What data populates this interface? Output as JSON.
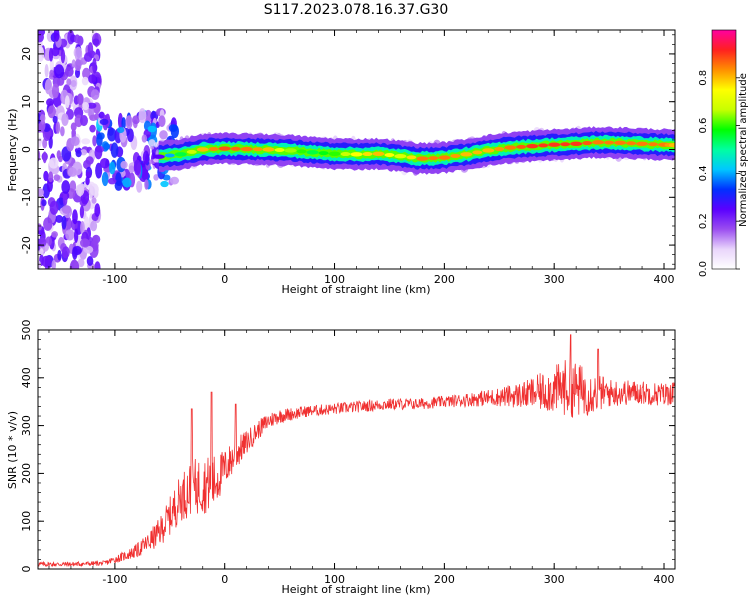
{
  "figure": {
    "title": "S117.2023.078.16.37.G30"
  },
  "chart_data": [
    {
      "type": "heatmap",
      "xlabel": "Height of straight line (km)",
      "ylabel": "Frequency (Hz)",
      "xlim": [
        -170,
        410
      ],
      "ylim": [
        -25,
        25
      ],
      "xticks": [
        -100,
        0,
        100,
        200,
        300,
        400
      ],
      "yticks": [
        -20,
        -10,
        0,
        10,
        20
      ],
      "colorbar": {
        "label": "Normalized spectral amplitude",
        "range": [
          0,
          1
        ],
        "ticks": [
          0.0,
          0.2,
          0.4,
          0.6,
          0.8
        ],
        "colormap": [
          "#ffffff",
          "#e9d5fb",
          "#9a4df0",
          "#5a00ff",
          "#0030ff",
          "#00c8ff",
          "#00ffa0",
          "#00ff00",
          "#c8ff00",
          "#ffff00",
          "#ff9000",
          "#ff2020",
          "#ff00a0"
        ]
      },
      "ridge": {
        "x": [
          -60,
          -40,
          -20,
          0,
          20,
          40,
          60,
          80,
          100,
          120,
          140,
          160,
          180,
          200,
          220,
          240,
          260,
          280,
          300,
          320,
          340,
          360,
          380,
          400,
          410
        ],
        "frequency": [
          -1.5,
          -1.0,
          0.0,
          0.2,
          0.1,
          0.0,
          -0.2,
          -0.6,
          -0.9,
          -1.0,
          -0.9,
          -1.4,
          -1.9,
          -1.7,
          -1.0,
          -0.2,
          0.4,
          0.7,
          1.0,
          1.2,
          1.5,
          1.4,
          1.2,
          1.0,
          0.9
        ],
        "peak_amplitude": [
          0.25,
          0.55,
          0.8,
          0.88,
          0.85,
          0.8,
          0.65,
          0.55,
          0.6,
          0.75,
          0.8,
          0.7,
          0.85,
          0.85,
          0.8,
          0.8,
          0.85,
          0.9,
          0.9,
          0.9,
          0.85,
          0.85,
          0.85,
          0.85,
          0.8
        ]
      },
      "noise_regions": [
        {
          "x_range": [
            -170,
            -115
          ],
          "frequency_range": [
            -25,
            25
          ],
          "amplitude": 0.2
        },
        {
          "x_range": [
            -115,
            -45
          ],
          "frequency_range": [
            -8,
            8
          ],
          "amplitude": 0.3
        }
      ]
    },
    {
      "type": "line",
      "xlabel": "Height of straight line (km)",
      "ylabel": "SNR (10 * v/v)",
      "xlim": [
        -170,
        410
      ],
      "ylim": [
        0,
        500
      ],
      "xticks": [
        -100,
        0,
        100,
        200,
        300,
        400
      ],
      "yticks": [
        0,
        100,
        200,
        300,
        400,
        500
      ],
      "color": "#f03030",
      "series": [
        {
          "x": [
            -170,
            -140,
            -110,
            -100,
            -90,
            -80,
            -70,
            -60,
            -50,
            -40,
            -30,
            -20,
            -10,
            0,
            10,
            20,
            30,
            40,
            50,
            75,
            100,
            125,
            150,
            175,
            200,
            225,
            250,
            275,
            300,
            310,
            320,
            330,
            350,
            375,
            400,
            410
          ],
          "values": [
            10,
            10,
            12,
            20,
            28,
            38,
            55,
            75,
            110,
            150,
            170,
            175,
            180,
            210,
            240,
            265,
            290,
            310,
            320,
            330,
            335,
            340,
            345,
            345,
            350,
            355,
            360,
            365,
            375,
            380,
            375,
            370,
            368,
            370,
            365,
            370
          ],
          "noise_amplitude": [
            5,
            5,
            5,
            8,
            10,
            15,
            20,
            30,
            40,
            50,
            60,
            60,
            60,
            40,
            35,
            25,
            20,
            18,
            15,
            12,
            12,
            12,
            12,
            12,
            12,
            15,
            20,
            30,
            50,
            60,
            60,
            50,
            30,
            25,
            25,
            25
          ]
        }
      ],
      "spikes": [
        {
          "x": -30,
          "value": 335
        },
        {
          "x": -12,
          "value": 370
        },
        {
          "x": 10,
          "value": 345
        },
        {
          "x": 315,
          "value": 490
        },
        {
          "x": 340,
          "value": 460
        }
      ]
    }
  ]
}
